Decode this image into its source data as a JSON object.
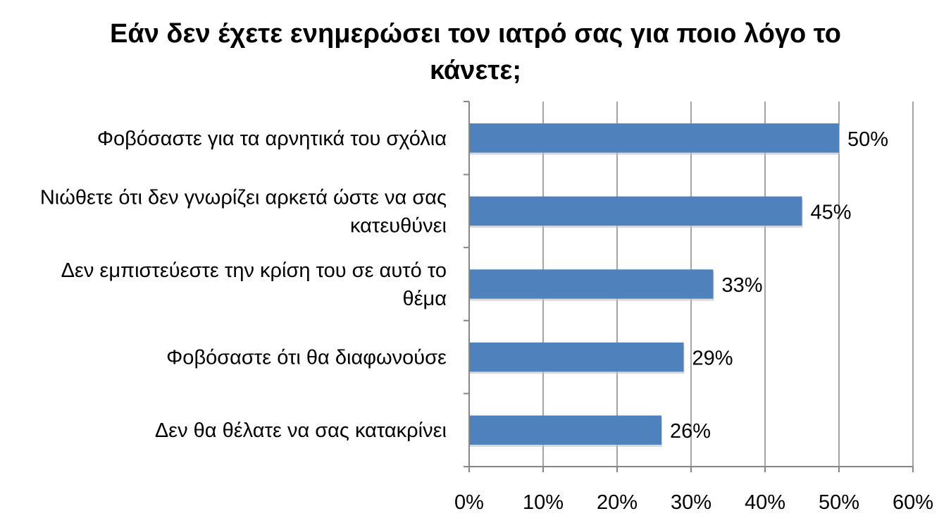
{
  "chart_data": {
    "type": "bar",
    "orientation": "horizontal",
    "title": "Εάν δεν έχετε ενημερώσει τον ιατρό σας για ποιο λόγο το κάνετε;",
    "categories": [
      "Φοβόσαστε για τα αρνητικά του σχόλια",
      "Νιώθετε ότι δεν γνωρίζει αρκετά ώστε να σας κατευθύνει",
      "Δεν εμπιστεύεστε την κρίση του σε αυτό το θέμα",
      "Φοβόσαστε ότι θα διαφωνούσε",
      "Δεν θα θέλατε να σας κατακρίνει"
    ],
    "category_lines": [
      [
        "Φοβόσαστε για τα αρνητικά του σχόλια"
      ],
      [
        "Νιώθετε ότι δεν γνωρίζει αρκετά ώστε να σας",
        "κατευθύνει"
      ],
      [
        "Δεν εμπιστεύεστε την κρίση του σε αυτό το",
        "θέμα"
      ],
      [
        "Φοβόσαστε ότι θα διαφωνούσε"
      ],
      [
        "Δεν θα θέλατε να σας κατακρίνει"
      ]
    ],
    "values": [
      50,
      45,
      33,
      29,
      26
    ],
    "data_labels": [
      "50%",
      "45%",
      "33%",
      "29%",
      "26%"
    ],
    "xlim": [
      0,
      60
    ],
    "xticks": [
      0,
      10,
      20,
      30,
      40,
      50,
      60
    ],
    "xtick_labels": [
      "0%",
      "10%",
      "20%",
      "30%",
      "40%",
      "50%",
      "60%"
    ],
    "xlabel": "",
    "ylabel": "",
    "grid": "vertical",
    "legend": "none",
    "colors": {
      "bar": "#4F81BD",
      "grid": "#868686",
      "axis": "#868686"
    }
  }
}
